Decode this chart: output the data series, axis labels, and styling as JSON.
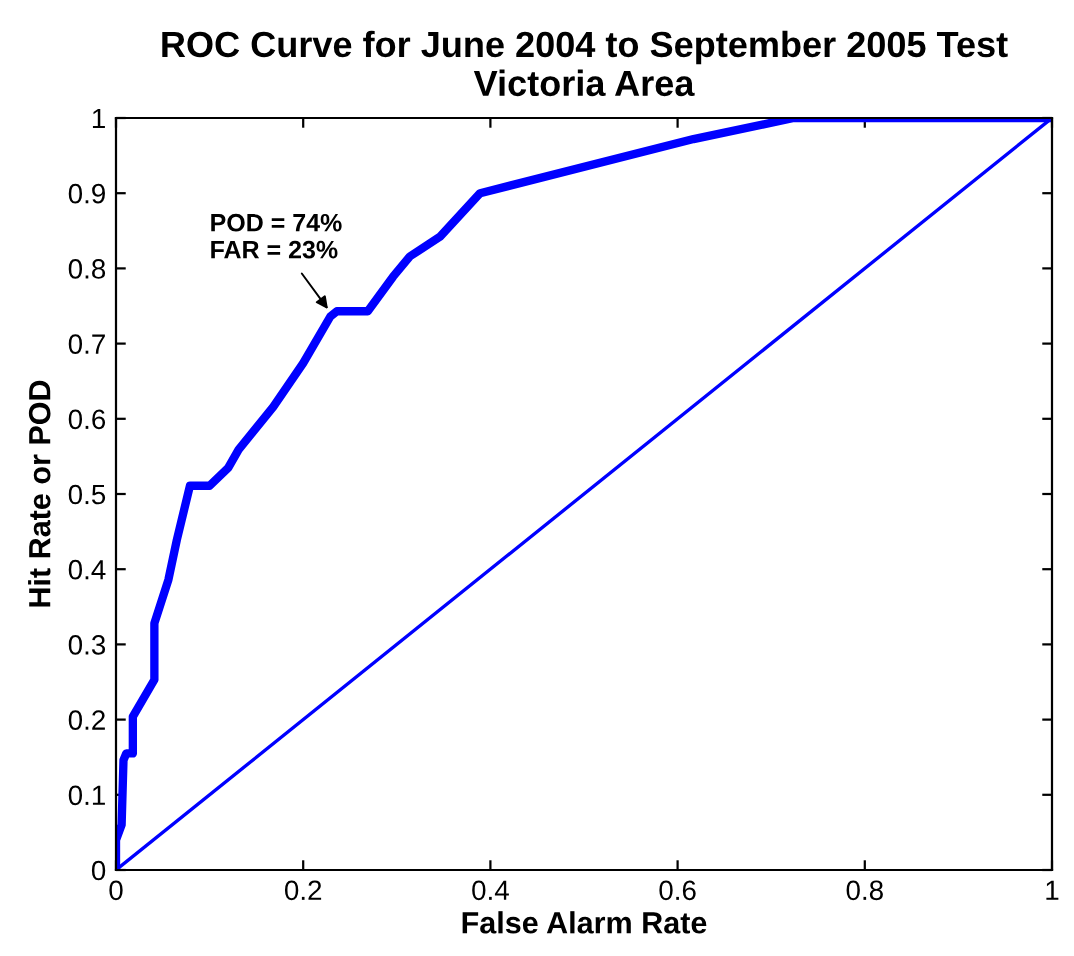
{
  "chart_data": {
    "type": "line",
    "title": "ROC Curve for June 2004 to September 2005 Test\nVictoria Area",
    "xlabel": "False Alarm Rate",
    "ylabel": "Hit Rate or POD",
    "series": [
      {
        "color": "#0000ff",
        "x": [
          0,
          0,
          0.006,
          0.008,
          0.011,
          0.018,
          0.018,
          0.041,
          0.041,
          0.056,
          0.065,
          0.079,
          0.1,
          0.12,
          0.131,
          0.168,
          0.2,
          0.229,
          0.236,
          0.269,
          0.296,
          0.314,
          0.346,
          0.389,
          0.617,
          0.724,
          1
        ],
        "values": [
          0,
          0.04,
          0.06,
          0.146,
          0.155,
          0.155,
          0.204,
          0.253,
          0.328,
          0.386,
          0.439,
          0.511,
          0.511,
          0.535,
          0.559,
          0.616,
          0.674,
          0.736,
          0.743,
          0.743,
          0.789,
          0.816,
          0.842,
          0.9,
          0.972,
          1,
          1
        ]
      },
      {
        "color": "#0000ff",
        "x": [
          0,
          1
        ],
        "values": [
          0,
          1
        ]
      }
    ],
    "annotations": [
      {
        "text": "POD = 74%\nFAR = 23%",
        "x": 0.23,
        "y": 0.74
      }
    ],
    "xlim": [
      0,
      1
    ],
    "ylim": [
      0,
      1
    ],
    "xticks": [
      0,
      0.2,
      0.4,
      0.6,
      0.8,
      1
    ],
    "yticks": [
      0,
      0.1,
      0.2,
      0.3,
      0.4,
      0.5,
      0.6,
      0.7,
      0.8,
      0.9,
      1
    ],
    "grid": false,
    "legend": false
  }
}
